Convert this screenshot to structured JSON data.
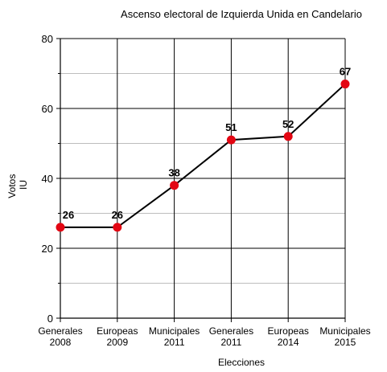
{
  "chart_data": {
    "type": "line",
    "title": "Ascenso electoral de Izquierda Unida en Candelario",
    "xlabel": "Elecciones",
    "ylabel_lines": [
      "Votos",
      "IU"
    ],
    "categories": [
      [
        "Generales",
        "2008"
      ],
      [
        "Europeas",
        "2009"
      ],
      [
        "Municipales",
        "2011"
      ],
      [
        "Generales",
        "2011"
      ],
      [
        "Europeas",
        "2014"
      ],
      [
        "Municipales",
        "2015"
      ]
    ],
    "series": [
      {
        "values": [
          26,
          26,
          38,
          51,
          52,
          67
        ]
      }
    ],
    "data_labels": [
      "26",
      "26",
      "38",
      "51",
      "52",
      "67"
    ],
    "ylim": [
      0,
      80
    ],
    "yticks": [
      0,
      20,
      40,
      60,
      80
    ],
    "ytick_labels": [
      "0",
      "20",
      "40",
      "60",
      "80"
    ],
    "minor_gridlines": [
      10,
      30,
      50,
      70
    ],
    "grid": true,
    "colors": {
      "line": "#000000",
      "marker": "#e30613",
      "major_grid": "#000000",
      "minor_grid": "#bdbdbd"
    }
  }
}
